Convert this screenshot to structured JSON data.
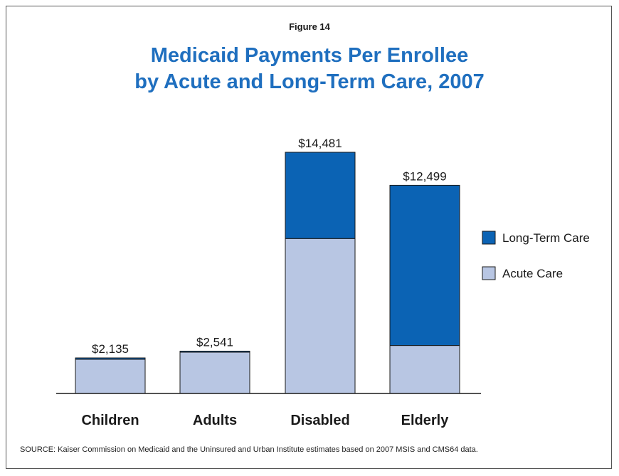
{
  "figure_label": "Figure 14",
  "title_line1": "Medicaid Payments Per Enrollee",
  "title_line2": "by Acute and Long-Term Care, 2007",
  "source": "SOURCE: Kaiser Commission on Medicaid and the Uninsured and Urban Institute estimates based on 2007 MSIS and CMS64 data.",
  "colors": {
    "long_term_care": "#0b63b4",
    "acute_care": "#b8c6e3",
    "outline": "#1a1a1a"
  },
  "chart_data": {
    "type": "bar",
    "stacked": true,
    "categories": [
      "Children",
      "Adults",
      "Disabled",
      "Elderly"
    ],
    "series": [
      {
        "name": "Acute Care",
        "values": [
          2050,
          2480,
          9300,
          2880
        ]
      },
      {
        "name": "Long-Term Care",
        "values": [
          85,
          61,
          5181,
          9619
        ]
      }
    ],
    "totals": [
      "$2,135",
      "$2,541",
      "$14,481",
      "$12,499"
    ],
    "ylim": [
      0,
      14481
    ],
    "legend_position": "right",
    "legend": [
      "Long-Term Care",
      "Acute Care"
    ],
    "grid": false
  }
}
